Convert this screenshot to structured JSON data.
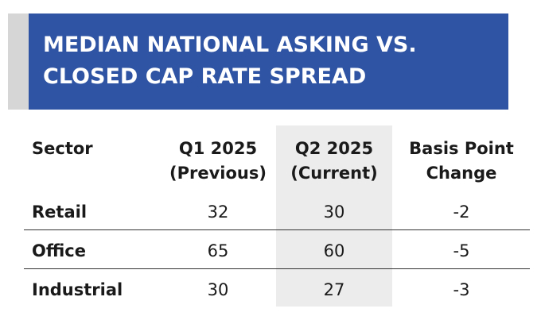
{
  "title": {
    "line1": "MEDIAN NATIONAL ASKING VS.",
    "line2": "CLOSED CAP RATE SPREAD"
  },
  "table": {
    "headers": {
      "sector": "Sector",
      "previous_line1": "Q1 2025",
      "previous_line2": "(Previous)",
      "current_line1": "Q2 2025",
      "current_line2": "(Current)",
      "change_line1": "Basis Point",
      "change_line2": "Change"
    },
    "rows": [
      {
        "sector": "Retail",
        "previous": "32",
        "current": "30",
        "change": "-2"
      },
      {
        "sector": "Office",
        "previous": "65",
        "current": "60",
        "change": "-5"
      },
      {
        "sector": "Industrial",
        "previous": "30",
        "current": "27",
        "change": "-3"
      }
    ]
  },
  "colors": {
    "banner": "#2f54a3",
    "banner_side": "#d6d6d6",
    "current_column_highlight": "#ececec"
  }
}
